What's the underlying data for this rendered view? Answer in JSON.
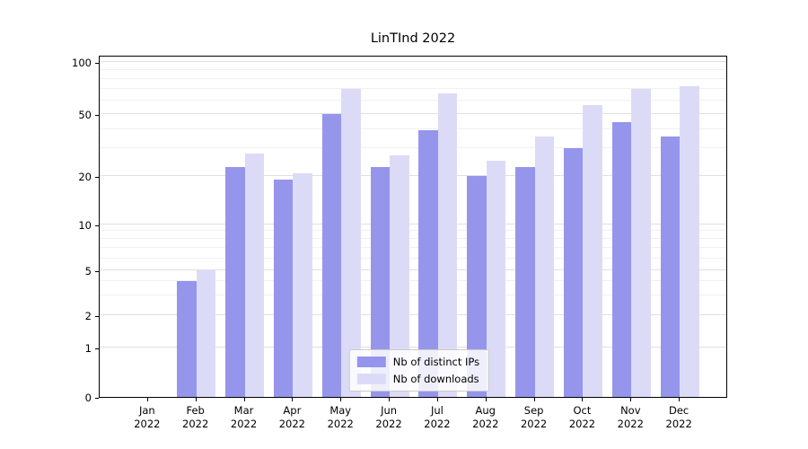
{
  "title": "LinTInd 2022",
  "chart_data": {
    "type": "bar",
    "title": "LinTInd 2022",
    "x_months": [
      "Jan",
      "Feb",
      "Mar",
      "Apr",
      "May",
      "Jun",
      "Jul",
      "Aug",
      "Sep",
      "Oct",
      "Nov",
      "Dec"
    ],
    "x_year": "2022",
    "series": [
      {
        "name": "Nb of distinct IPs",
        "color": "#9695ec",
        "values": [
          0,
          4,
          23,
          19,
          50,
          23,
          39,
          20,
          23,
          30,
          44,
          36
        ]
      },
      {
        "name": "Nb of downloads",
        "color": "#dbdbf8",
        "values": [
          0,
          5,
          28,
          21,
          70,
          27,
          66,
          25,
          36,
          56,
          70,
          72
        ]
      }
    ],
    "yscale": "symlog",
    "yticks": [
      0,
      1,
      2,
      5,
      10,
      20,
      50,
      100
    ],
    "yticklabels": [
      "0",
      "1",
      "2",
      "5",
      "10",
      "20",
      "50",
      "100"
    ],
    "minor_gridline_values": [
      3,
      4,
      6,
      7,
      8,
      9,
      30,
      40,
      60,
      70,
      80,
      90
    ],
    "ylim": [
      0,
      110
    ],
    "grid": true,
    "legend_position": "lower center"
  },
  "colors": {
    "background": "#ffffff",
    "axis": "#000000",
    "grid_major": "rgba(0,0,0,0.12)",
    "grid_minor": "rgba(0,0,0,0.06)"
  }
}
